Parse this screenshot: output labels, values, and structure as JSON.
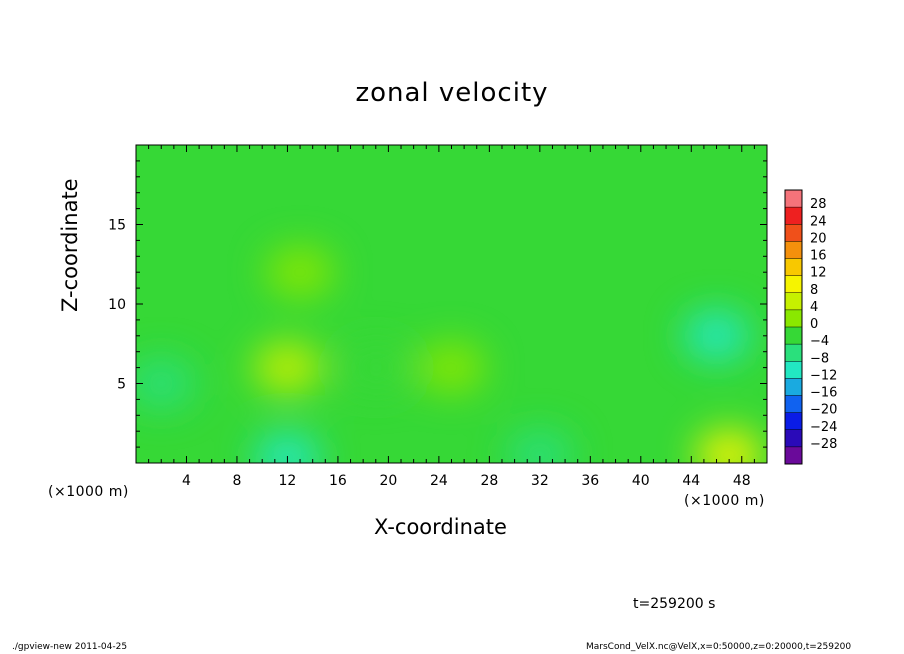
{
  "chart_data": {
    "type": "heatmap",
    "title": "zonal velocity",
    "xlabel": "X-coordinate",
    "ylabel": "Z-coordinate",
    "x_unit_label": "(×1000 m)",
    "xlim": [
      0,
      50
    ],
    "ylim": [
      0,
      20
    ],
    "x_ticks": [
      "4",
      "8",
      "12",
      "16",
      "20",
      "24",
      "28",
      "32",
      "36",
      "40",
      "44",
      "48"
    ],
    "y_ticks": [
      "5",
      "10",
      "15"
    ],
    "colorbar": {
      "labels": [
        "28",
        "24",
        "20",
        "16",
        "12",
        "8",
        "4",
        "0",
        "−4",
        "−8",
        "−12",
        "−16",
        "−20",
        "−24",
        "−28"
      ],
      "colors": [
        "#f5737a",
        "#ee2020",
        "#f0501a",
        "#f4900c",
        "#f8c800",
        "#f6f400",
        "#c6f000",
        "#8ae800",
        "#36d836",
        "#2ae07c",
        "#22e8c2",
        "#1aaae0",
        "#1062f0",
        "#0a1ce6",
        "#2a0ab8",
        "#6a0a9a"
      ]
    },
    "field": {
      "background_value": -1,
      "features": [
        {
          "x": 12,
          "z": 6,
          "value": 6
        },
        {
          "x": 13,
          "z": 12,
          "value": 3
        },
        {
          "x": 46,
          "z": 8,
          "value": -9
        },
        {
          "x": 47,
          "z": 0.5,
          "value": 10
        },
        {
          "x": 12,
          "z": 0.3,
          "value": -11
        },
        {
          "x": 2,
          "z": 5,
          "value": -6
        },
        {
          "x": 32,
          "z": 0.5,
          "value": -7
        },
        {
          "x": 25,
          "z": 6,
          "value": 3
        },
        {
          "x": 19,
          "z": 6,
          "value": -4
        }
      ]
    },
    "time_label": "t=259200 s"
  },
  "footer": {
    "left": "./gpview-new  2011-04-25",
    "right": "MarsCond_VelX.nc@VelX,x=0:50000,z=0:20000,t=259200"
  }
}
